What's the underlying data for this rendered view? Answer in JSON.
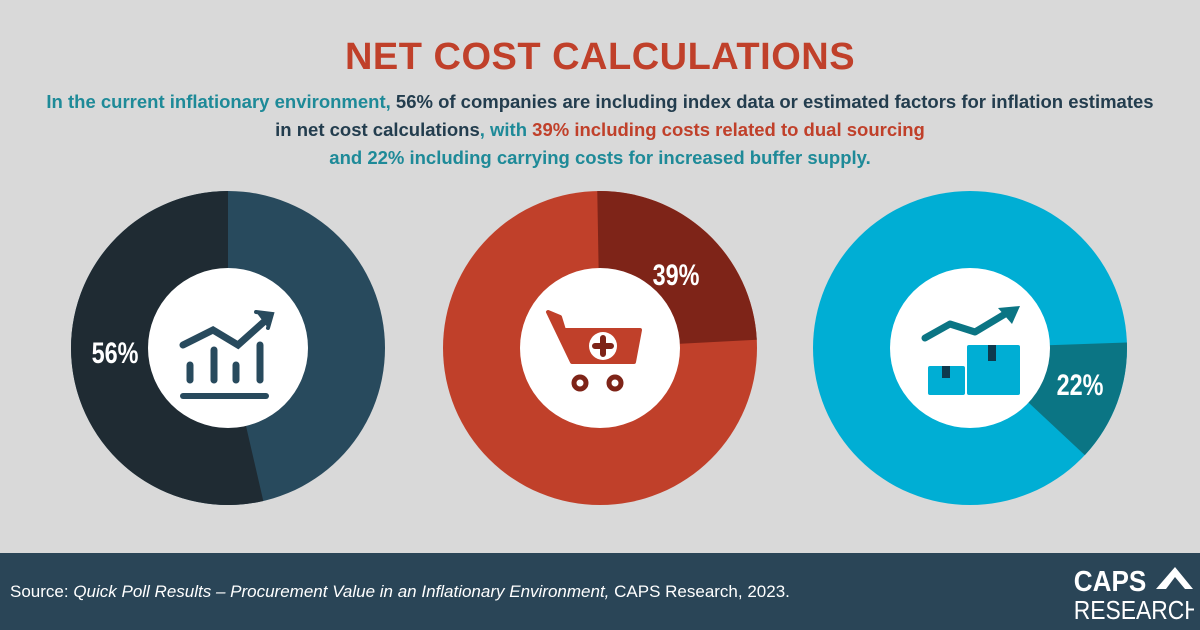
{
  "title": "NET COST CALCULATIONS",
  "subtitle": {
    "p1": "In the current inflationary environment, ",
    "p2": "56%",
    "p3": " of companies are including index data or estimated factors for inflation estimates in net cost calculations",
    "p4": ", with ",
    "p5": "39%",
    "p6": " including costs related to dual sourcing",
    "p7": " and ",
    "p8": "22%",
    "p9": " including carrying costs for increased buffer supply."
  },
  "chart_data": [
    {
      "type": "pie",
      "variant": "donut",
      "label": "56%",
      "value": 56,
      "icon": "trend-bar-chart-icon",
      "colors": {
        "highlight": "#1f2b33",
        "rest": "#284a5d"
      }
    },
    {
      "type": "pie",
      "variant": "donut",
      "label": "39%",
      "value": 39,
      "icon": "shopping-cart-plus-icon",
      "colors": {
        "highlight": "#7e2418",
        "rest": "#c0402a"
      }
    },
    {
      "type": "pie",
      "variant": "donut",
      "label": "22%",
      "value": 22,
      "icon": "boxes-growth-icon",
      "colors": {
        "highlight": "#0b7584",
        "rest": "#00aed4"
      }
    }
  ],
  "footer": {
    "source_prefix": "Source: ",
    "source_title": "Quick Poll Results – Procurement Value in an Inflationary Environment,",
    "source_suffix": " CAPS Research, 2023.",
    "logo_line1": "CAPS",
    "logo_line2": "RESEARCH"
  }
}
